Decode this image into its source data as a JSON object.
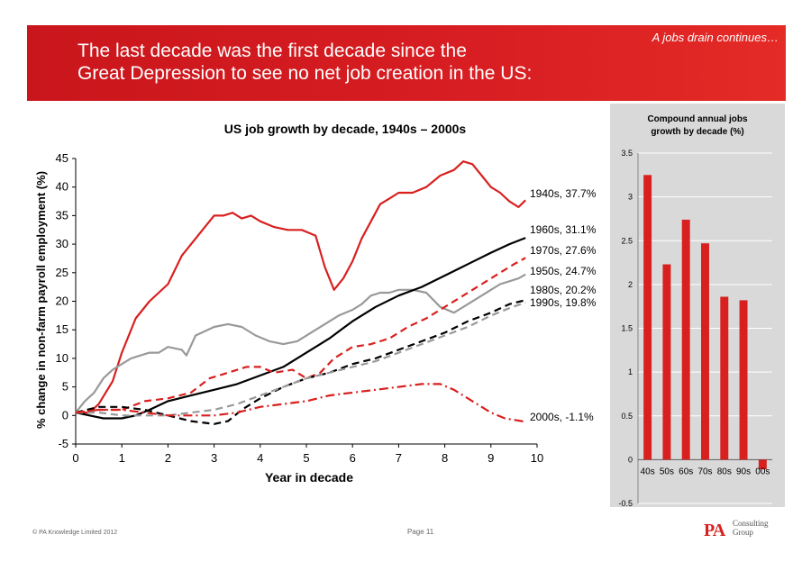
{
  "header": {
    "tagline": "A jobs drain continues…",
    "headline": "The last decade was the first decade since the\nGreat Depression to see no net job creation in the US:"
  },
  "colors": {
    "brand_red": "#d8201f",
    "gray_line": "#999999",
    "black_line": "#000000",
    "panel_bg": "#d9d9d9"
  },
  "footer": {
    "copyright": "© PA Knowledge Limited 2012",
    "page": "Page 11",
    "logo_mark": "PA",
    "logo_text": "Consulting\nGroup"
  },
  "chart_data": [
    {
      "type": "line",
      "title": "US job growth by decade, 1940s – 2000s",
      "xlabel": "Year in decade",
      "ylabel": "% change in non-farm payroll employment (%)",
      "xlim": [
        0,
        10
      ],
      "ylim": [
        -5,
        45
      ],
      "xticks": [
        "0",
        "1",
        "2",
        "3",
        "4",
        "5",
        "6",
        "7",
        "8",
        "9",
        "10"
      ],
      "yticks": [
        "-5",
        "0",
        "5",
        "10",
        "15",
        "20",
        "25",
        "30",
        "35",
        "40",
        "45"
      ],
      "grid": false,
      "series": [
        {
          "name": "1940s",
          "label": "1940s, 37.7%",
          "color": "#d8201f",
          "style": "solid",
          "x": [
            0,
            0.3,
            0.5,
            0.8,
            1.0,
            1.3,
            1.6,
            2.0,
            2.3,
            2.6,
            2.9,
            3.0,
            3.2,
            3.4,
            3.6,
            3.8,
            4.0,
            4.3,
            4.6,
            4.9,
            5.2,
            5.4,
            5.6,
            5.8,
            6.0,
            6.2,
            6.4,
            6.6,
            6.8,
            7.0,
            7.3,
            7.6,
            7.9,
            8.2,
            8.4,
            8.6,
            8.8,
            9.0,
            9.2,
            9.4,
            9.6,
            9.75
          ],
          "y": [
            0.5,
            0.5,
            2,
            6,
            11,
            17,
            20,
            23,
            28,
            31,
            34,
            35,
            35,
            35.5,
            34.5,
            35,
            34,
            33,
            32.5,
            32.5,
            31.5,
            26,
            22,
            24,
            27,
            31,
            34,
            37,
            38,
            39,
            39,
            40,
            42,
            43,
            44.5,
            44,
            42,
            40,
            39,
            37.5,
            36.5,
            37.7
          ]
        },
        {
          "name": "1950s",
          "label": "1950s, 24.7%",
          "color": "#999999",
          "style": "solid",
          "x": [
            0,
            0.2,
            0.4,
            0.6,
            0.8,
            1.0,
            1.2,
            1.4,
            1.6,
            1.8,
            2.0,
            2.3,
            2.4,
            2.6,
            3.0,
            3.3,
            3.6,
            3.9,
            4.2,
            4.5,
            4.8,
            5.1,
            5.4,
            5.7,
            6.0,
            6.2,
            6.4,
            6.6,
            6.8,
            7.0,
            7.3,
            7.6,
            7.9,
            8.2,
            8.5,
            8.8,
            9.0,
            9.2,
            9.4,
            9.6,
            9.75
          ],
          "y": [
            0.5,
            2.5,
            4,
            6.5,
            8,
            9,
            10,
            10.5,
            11,
            11,
            12,
            11.5,
            10.5,
            14,
            15.5,
            16,
            15.5,
            14,
            13,
            12.5,
            13,
            14.5,
            16,
            17.5,
            18.5,
            19.5,
            21,
            21.5,
            21.5,
            22,
            22,
            21.5,
            19,
            18,
            19.5,
            21,
            22,
            23,
            23.5,
            24,
            24.7
          ]
        },
        {
          "name": "1960s",
          "label": "1960s, 31.1%",
          "color": "#000000",
          "style": "solid",
          "x": [
            0,
            0.3,
            0.6,
            1.0,
            1.3,
            1.6,
            2.0,
            2.5,
            3.0,
            3.5,
            4.0,
            4.5,
            5.0,
            5.5,
            6.0,
            6.5,
            7.0,
            7.5,
            8.0,
            8.5,
            9.0,
            9.4,
            9.75
          ],
          "y": [
            0.5,
            0,
            -0.5,
            -0.5,
            0,
            1,
            2.5,
            3.5,
            4.5,
            5.5,
            7,
            8.5,
            11,
            13.5,
            16.5,
            19,
            21,
            22.5,
            24.5,
            26.5,
            28.5,
            30,
            31.1
          ]
        },
        {
          "name": "1970s",
          "label": "1970s, 27.6%",
          "color": "#d8201f",
          "style": "dashed",
          "x": [
            0,
            0.5,
            1.0,
            1.5,
            2.0,
            2.5,
            2.9,
            3.3,
            3.7,
            4.0,
            4.3,
            4.7,
            5.0,
            5.3,
            5.6,
            6.0,
            6.4,
            6.8,
            7.2,
            7.6,
            8.0,
            8.4,
            8.8,
            9.2,
            9.5,
            9.75
          ],
          "y": [
            0.5,
            1,
            1,
            2.5,
            3,
            4,
            6.5,
            7.5,
            8.5,
            8.5,
            7.5,
            8,
            6.5,
            7.5,
            10,
            12,
            12.5,
            13.5,
            15.5,
            17,
            19,
            21,
            23,
            25,
            26.5,
            27.6
          ]
        },
        {
          "name": "1980s",
          "label": "1980s, 20.2%",
          "color": "#000000",
          "style": "dashed",
          "x": [
            0,
            0.5,
            1.0,
            1.5,
            2.0,
            2.5,
            3.0,
            3.3,
            3.6,
            4.0,
            4.5,
            5.0,
            5.5,
            6.0,
            6.5,
            7.0,
            7.5,
            8.0,
            8.5,
            9.0,
            9.4,
            9.75
          ],
          "y": [
            0.5,
            1.5,
            1.5,
            1,
            0,
            -1,
            -1.5,
            -1,
            1,
            3,
            5,
            6.5,
            7.5,
            9,
            10,
            11.5,
            13,
            14.5,
            16.5,
            18,
            19.5,
            20.2
          ]
        },
        {
          "name": "1990s",
          "label": "1990s, 19.8%",
          "color": "#999999",
          "style": "dashed",
          "x": [
            0,
            0.5,
            1.0,
            1.5,
            2.0,
            2.5,
            3.0,
            3.5,
            4.0,
            4.5,
            5.0,
            5.5,
            6.0,
            6.5,
            7.0,
            7.5,
            8.0,
            8.5,
            9.0,
            9.4,
            9.75
          ],
          "y": [
            0.5,
            0.5,
            0,
            0,
            0,
            0.5,
            1,
            2,
            3.5,
            5,
            6.5,
            7.5,
            8.5,
            9.5,
            11,
            12.5,
            14,
            15.5,
            17.5,
            18.8,
            19.8
          ]
        },
        {
          "name": "2000s",
          "label": "2000s, -1.1%",
          "color": "#d8201f",
          "style": "dashdot",
          "x": [
            0,
            0.5,
            1.0,
            1.5,
            2.0,
            2.5,
            3.0,
            3.5,
            4.0,
            4.5,
            5.0,
            5.5,
            6.0,
            6.5,
            7.0,
            7.5,
            7.9,
            8.2,
            8.5,
            8.8,
            9.0,
            9.3,
            9.75
          ],
          "y": [
            0.5,
            1,
            1,
            0.5,
            0,
            0,
            0,
            0.5,
            1.5,
            2,
            2.5,
            3.5,
            4,
            4.5,
            5,
            5.5,
            5.5,
            4.5,
            3,
            1.5,
            0.5,
            -0.5,
            -1.1
          ]
        }
      ]
    },
    {
      "type": "bar",
      "title": "Compound annual jobs growth by decade (%)",
      "categories": [
        "40s",
        "50s",
        "60s",
        "70s",
        "80s",
        "90s",
        "00s"
      ],
      "values": [
        3.25,
        2.23,
        2.74,
        2.47,
        1.86,
        1.82,
        -0.11
      ],
      "ylim": [
        -0.5,
        3.5
      ],
      "yticks": [
        "-0.5",
        "0",
        "0.5",
        "1",
        "1.5",
        "2",
        "2.5",
        "3",
        "3.5"
      ],
      "grid": true,
      "color": "#d8201f"
    }
  ]
}
